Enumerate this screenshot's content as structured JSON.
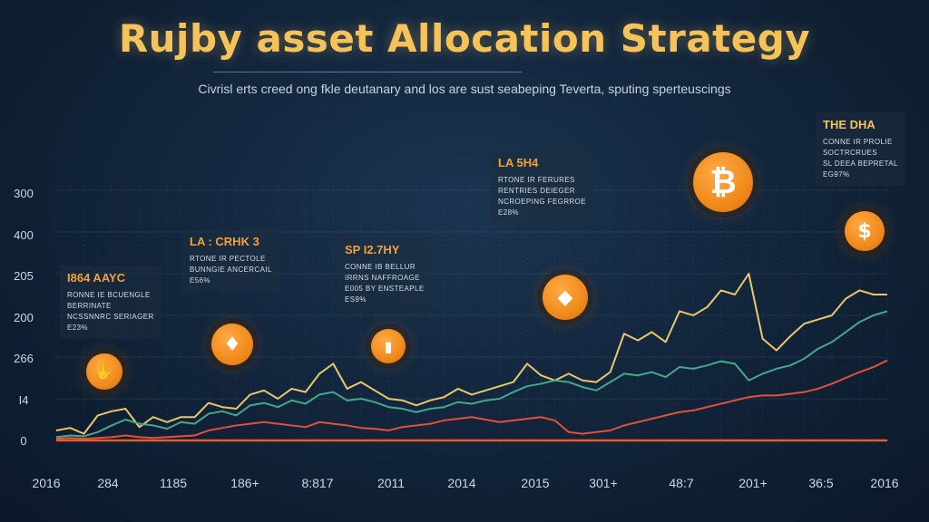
{
  "title": "Rujby asset Allocation Strategy",
  "subtitle": "Civrisl erts creed ong fkle deutanary and los are sust seabeping Teverta, sputing sperteuscings",
  "colors": {
    "background": "#12263d",
    "title": "#f6c35a",
    "accent_orange": "#f08a1c",
    "series_yellow": "#e9c86a",
    "series_green": "#46a88a",
    "series_red": "#e0523a",
    "series_orange_flat": "#ea5a28"
  },
  "chart_data": {
    "type": "line",
    "title": "Rujby asset Allocation Strategy",
    "y_tick_labels": [
      "300",
      "400",
      "205",
      "200",
      "266",
      "I4",
      "0"
    ],
    "x_tick_labels": [
      "2016",
      "284",
      "1185",
      "186+",
      "8:817",
      "2011",
      "2014",
      "2015",
      "301+",
      "48:7",
      "201+",
      "36:5",
      "2016"
    ],
    "ylim": [
      0,
      300
    ],
    "grid": true,
    "legend": "none",
    "x": [
      0,
      1,
      2,
      3,
      4,
      5,
      6,
      7,
      8,
      9,
      10,
      11,
      12,
      13,
      14,
      15,
      16,
      17,
      18,
      19,
      20,
      21,
      22,
      23,
      24,
      25,
      26,
      27,
      28,
      29,
      30,
      31,
      32,
      33,
      34,
      35,
      36,
      37,
      38,
      39,
      40,
      41,
      42,
      43,
      44,
      45,
      46,
      47,
      48,
      49,
      50,
      51,
      52,
      53,
      54,
      55,
      56,
      57,
      58,
      59,
      60
    ],
    "series": [
      {
        "values": [
          12,
          15,
          8,
          30,
          35,
          38,
          16,
          28,
          22,
          28,
          28,
          45,
          40,
          38,
          55,
          60,
          50,
          62,
          58,
          80,
          92,
          62,
          70,
          60,
          50,
          48,
          42,
          48,
          52,
          62,
          55,
          60,
          65,
          70,
          92,
          78,
          72,
          80,
          72,
          70,
          82,
          128,
          120,
          130,
          118,
          155,
          150,
          160,
          180,
          175,
          200,
          122,
          108,
          125,
          140,
          145,
          150,
          170,
          180,
          175,
          175
        ],
        "color": "#e9c86a"
      },
      {
        "values": [
          4,
          6,
          5,
          10,
          18,
          25,
          20,
          18,
          14,
          22,
          20,
          32,
          35,
          30,
          42,
          45,
          40,
          48,
          44,
          55,
          58,
          48,
          50,
          46,
          40,
          38,
          34,
          38,
          40,
          46,
          44,
          48,
          50,
          58,
          65,
          68,
          72,
          70,
          64,
          60,
          70,
          80,
          78,
          82,
          76,
          88,
          86,
          90,
          95,
          92,
          72,
          80,
          86,
          90,
          98,
          110,
          118,
          130,
          142,
          150,
          155
        ],
        "color": "#46a88a"
      },
      {
        "values": [
          2,
          3,
          2,
          3,
          4,
          6,
          4,
          3,
          4,
          5,
          6,
          12,
          15,
          18,
          20,
          22,
          20,
          18,
          16,
          22,
          20,
          18,
          15,
          14,
          12,
          16,
          18,
          20,
          24,
          26,
          28,
          25,
          22,
          24,
          26,
          28,
          24,
          10,
          8,
          10,
          12,
          18,
          22,
          26,
          30,
          34,
          36,
          40,
          44,
          48,
          52,
          54,
          54,
          56,
          58,
          62,
          68,
          75,
          82,
          88,
          96
        ],
        "color": "#e0523a"
      },
      {
        "values": [
          0,
          0,
          0,
          0,
          0,
          0,
          0,
          0,
          0,
          0,
          0,
          0,
          0,
          0,
          0,
          0,
          0,
          0,
          0,
          0,
          0,
          0,
          0,
          0,
          0,
          0,
          0,
          0,
          0,
          0,
          0,
          0,
          0,
          0,
          0,
          0,
          0,
          0,
          0,
          0,
          0,
          0,
          0,
          0,
          0,
          0,
          0,
          0,
          0,
          0,
          0,
          0,
          0,
          0,
          0,
          0,
          0,
          0,
          0,
          0,
          0
        ],
        "color": "#ea5a28"
      }
    ],
    "annotations": [
      {
        "head": "I864 AAYC",
        "lines": [
          "RONNE IE BCUENGLE",
          "BERRINATE",
          "NCSSNNRC SERIAGER",
          "E23%"
        ]
      },
      {
        "head": "LA : CRHK 3",
        "lines": [
          "RTONE IR PECTOLE",
          "BUNNGIE ANCERCAIL",
          "E56%"
        ]
      },
      {
        "head": "SP I2.7HY",
        "lines": [
          "CONNE IB BELLUR",
          "IRRNS NAFFROAGE",
          "E005 BY ENSTEAPLE",
          "ES9%"
        ]
      },
      {
        "head": "LA 5H4",
        "lines": [
          "RTONE IR FERURES",
          "RENTRIES DEIEGER",
          "NCROEPING FEGRROE",
          "E28%"
        ]
      },
      {
        "head": "THE DHA",
        "lines": [
          "CONNE IR PROLIE",
          "SOCTRCRUES",
          "SL DEEA BEPRETAL",
          "EG97%"
        ]
      }
    ]
  },
  "icons": [
    "handshake-coin-icon",
    "diamond-coin-icon",
    "chart-coin-icon",
    "ethereum-coin-icon",
    "bitcoin-coin-icon",
    "dollar-coin-icon"
  ],
  "coin_glyphs": {
    "bitcoin": "₿",
    "dollar": "$",
    "ethereum": "◆",
    "diamond": "♦",
    "chart": "▮",
    "handshake": "✋"
  }
}
